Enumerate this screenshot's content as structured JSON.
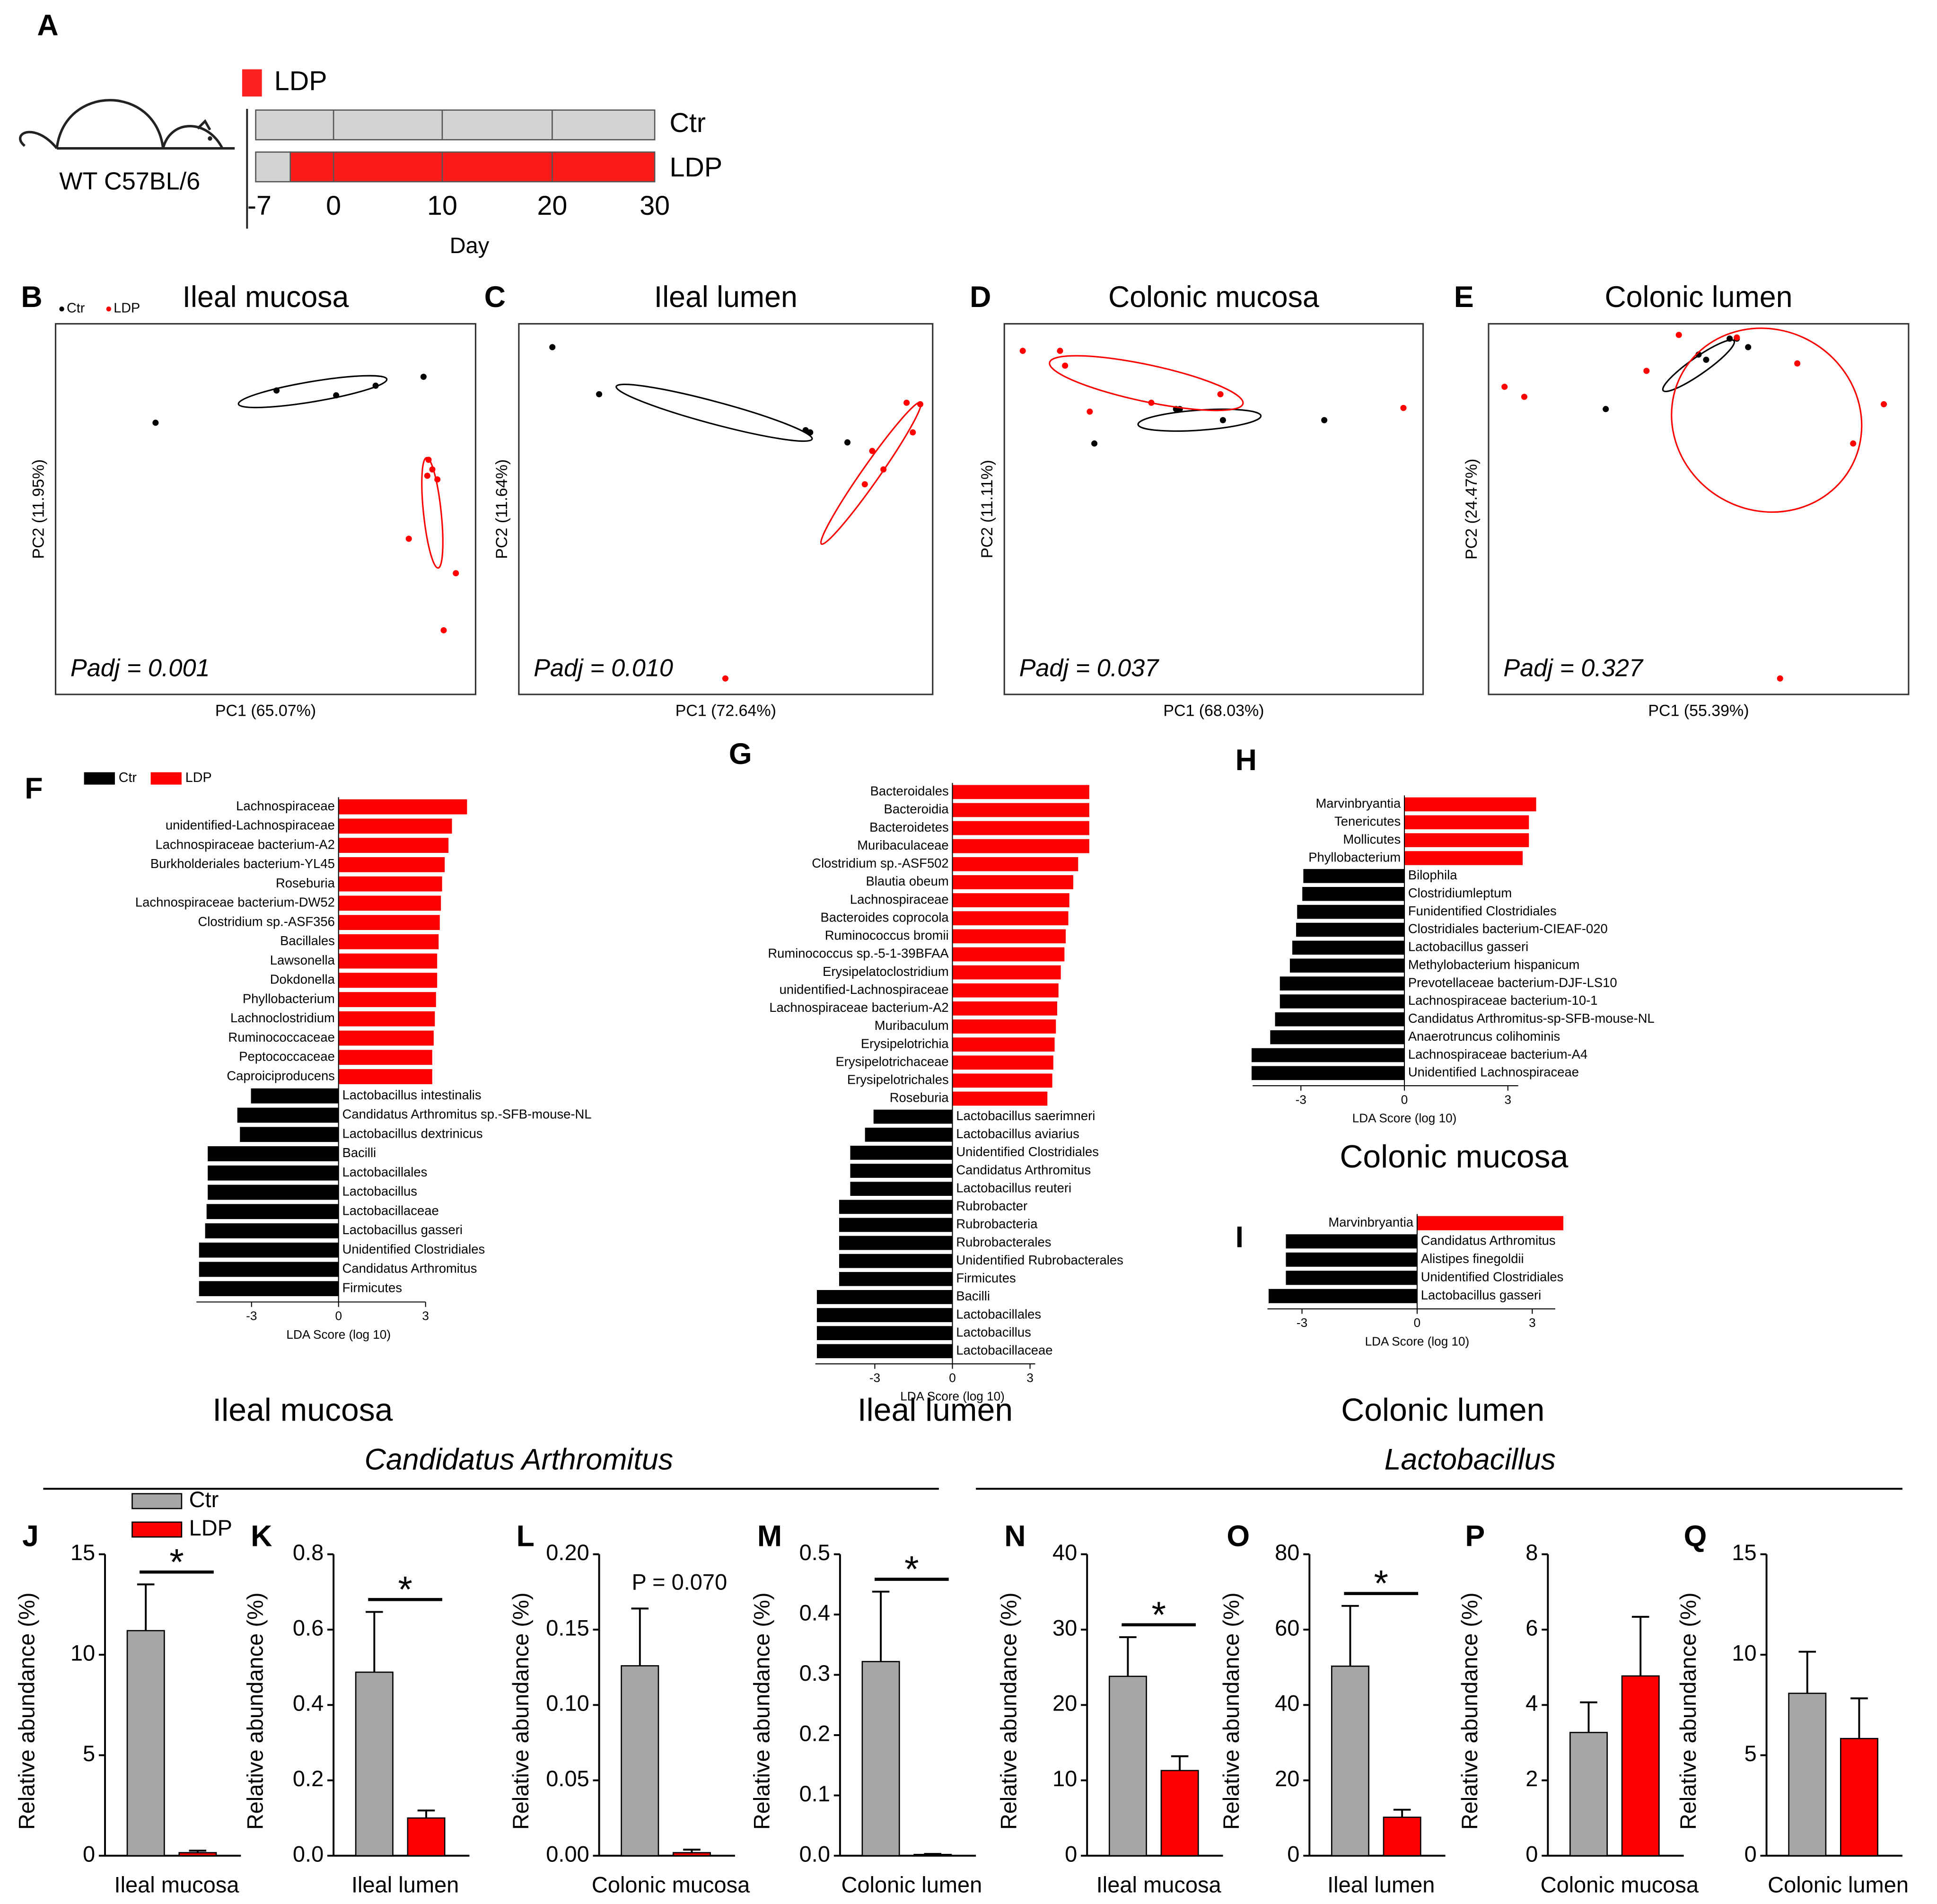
{
  "schematic": {
    "panel": "A",
    "legend": "LDP",
    "mouse": "WT C57BL/6",
    "groups": [
      "Ctr",
      "LDP"
    ],
    "ticks": [
      -7,
      0,
      10,
      20,
      30
    ],
    "xlabel": "Day"
  },
  "headers": [
    "Candidatus Arthromitus",
    "Lactobacillus"
  ],
  "chart_data": [
    {
      "type": "scatter",
      "panel": "B",
      "title": "Ileal mucosa",
      "xlabel": "PC1 (65.07%)",
      "ylabel": "PC2 (11.95%)",
      "annotation": "Padj = 0.001",
      "xlim": [
        0,
        100
      ],
      "ylim": [
        0,
        100
      ],
      "legend": true,
      "series": [
        {
          "name": "Ctr",
          "color": "#000000",
          "x": [
            23.8,
            52.6,
            66.8,
            76.2,
            87.6
          ],
          "y": [
            73.3,
            82,
            80.7,
            83.3,
            85.7
          ],
          "ellipse": {
            "cx": 61.2,
            "cy": 81.7,
            "rx": 17.9,
            "ry": 2.4,
            "angle": -9.5
          }
        },
        {
          "name": "LDP",
          "color": "#ff0000",
          "x": [
            88.8,
            89.7,
            88.5,
            90.9,
            84.1,
            95.3,
            92.4
          ],
          "y": [
            63.3,
            60.7,
            59,
            58,
            42,
            32.7,
            17.3
          ],
          "ellipse": {
            "cx": 89.7,
            "cy": 49,
            "rx": 13.2,
            "ry": 2.1,
            "angle": 84
          }
        }
      ]
    },
    {
      "type": "scatter",
      "panel": "C",
      "title": "Ileal lumen",
      "xlabel": "PC1 (72.64%)",
      "ylabel": "PC2 (11.64%)",
      "annotation": "Padj = 0.010",
      "xlim": [
        0,
        100
      ],
      "ylim": [
        0,
        100
      ],
      "series": [
        {
          "name": "Ctr",
          "color": "#000000",
          "x": [
            8.1,
            19.4,
            69.3,
            70.4,
            79.4
          ],
          "y": [
            93.7,
            81,
            71.3,
            70.7,
            68
          ],
          "ellipse": {
            "cx": 47.2,
            "cy": 76,
            "rx": 24.5,
            "ry": 2.7,
            "angle": 15
          }
        },
        {
          "name": "LDP",
          "color": "#ff0000",
          "x": [
            93.7,
            97,
            95.2,
            85.4,
            88.1,
            83.6,
            49.9
          ],
          "y": [
            78.7,
            78.3,
            70.7,
            65.7,
            60.7,
            56.7,
            4.3
          ],
          "ellipse": {
            "cx": 85.1,
            "cy": 59.7,
            "rx": 20.9,
            "ry": 2.1,
            "angle": -55
          }
        }
      ]
    },
    {
      "type": "scatter",
      "panel": "D",
      "title": "Colonic mucosa",
      "xlabel": "PC1 (68.03%)",
      "ylabel": "PC2 (11.11%)",
      "annotation": "Padj = 0.037",
      "xlim": [
        0,
        100
      ],
      "ylim": [
        0,
        100
      ],
      "series": [
        {
          "name": "Ctr",
          "color": "#000000",
          "x": [
            21.5,
            41,
            41.9,
            52.2,
            76.4
          ],
          "y": [
            67.7,
            77,
            77,
            74,
            74
          ],
          "ellipse": {
            "cx": 46.6,
            "cy": 74,
            "rx": 14.7,
            "ry": 2.4,
            "angle": -4
          }
        },
        {
          "name": "LDP",
          "color": "#ff0000",
          "x": [
            4.4,
            13.3,
            14.5,
            20.4,
            35.1,
            51.6,
            95.3
          ],
          "y": [
            92.7,
            92.7,
            88.7,
            76.3,
            78.7,
            81,
            77.3
          ],
          "ellipse": {
            "cx": 33.9,
            "cy": 84,
            "rx": 23.6,
            "ry": 4.4,
            "angle": 12
          }
        }
      ]
    },
    {
      "type": "scatter",
      "panel": "E",
      "title": "Colonic lumen",
      "xlabel": "PC1 (55.39%)",
      "ylabel": "PC2 (24.47%)",
      "annotation": "Padj = 0.327",
      "xlim": [
        0,
        100
      ],
      "ylim": [
        0,
        100
      ],
      "series": [
        {
          "name": "Ctr",
          "color": "#000000",
          "x": [
            27.9,
            50,
            51.8,
            57.4,
            59.1,
            61.8
          ],
          "y": [
            77,
            91.7,
            90.3,
            96,
            96,
            93.7
          ],
          "ellipse": {
            "cx": 50,
            "cy": 88.7,
            "rx": 10.3,
            "ry": 2,
            "angle": -35
          }
        },
        {
          "name": "LDP",
          "color": "#ff0000",
          "x": [
            3.8,
            8.5,
            37.6,
            45.3,
            73.5,
            86.8,
            94.1,
            69.4,
            59.1
          ],
          "y": [
            83,
            80.3,
            87.3,
            97,
            89.3,
            67.7,
            78.3,
            4.3,
            96.3
          ],
          "ellipse": {
            "cx": 66.2,
            "cy": 74,
            "rx": 23,
            "ry": 21.5,
            "angle": 30
          }
        }
      ]
    },
    {
      "type": "lda",
      "panel": "F",
      "title": "Ileal mucosa",
      "xlabel": "LDA Score (log 10)",
      "xlim": [
        -4.9,
        3
      ],
      "xticks": [
        -3,
        0,
        3
      ],
      "legend": true,
      "series": [
        {
          "name": "Ctr",
          "color": "#000000",
          "categories": [
            "Lactobacillus intestinalis",
            "Candidatus Arthromitus sp.-SFB-mouse-NL",
            "Lactobacillus dextrinicus",
            "Bacilli",
            "Lactobacillales",
            "Lactobacillus",
            "Lactobacillaceae",
            "Lactobacillus gasseri",
            "Unidentified Clostridiales",
            "Candidatus Arthromitus",
            "Firmicutes"
          ],
          "values": [
            -3.02,
            -3.49,
            -3.4,
            -4.51,
            -4.51,
            -4.51,
            -4.55,
            -4.6,
            -4.81,
            -4.81,
            -4.81
          ]
        },
        {
          "name": "LDP",
          "color": "#ff0000",
          "categories": [
            "Lachnospiraceae",
            "unidentified-Lachnospiraceae",
            "Lachnospiraceae bacterium-A2",
            "Burkholderiales bacterium-YL45",
            "Roseburia",
            "Lachnospiraceae bacterium-DW52",
            "Clostridium sp.-ASF356",
            "Bacillales",
            "Lawsonella",
            "Dokdonella",
            "Phyllobacterium",
            "Lachnoclostridium",
            "Ruminococcaceae",
            "Peptococcaceae",
            "Caproiciproducens"
          ],
          "values": [
            4.43,
            3.91,
            3.79,
            3.66,
            3.57,
            3.53,
            3.49,
            3.45,
            3.4,
            3.4,
            3.36,
            3.32,
            3.28,
            3.23,
            3.23
          ]
        }
      ]
    },
    {
      "type": "lda",
      "panel": "G",
      "title": "Ileal lumen",
      "xlabel": "LDA Score (log 10)",
      "xlim": [
        -5.3,
        3.2
      ],
      "xticks": [
        -3,
        0,
        3
      ],
      "series": [
        {
          "name": "Ctr",
          "color": "#000000",
          "categories": [
            "Lactobacillus saerimneri",
            "Lactobacillus aviarius",
            "Unidentified Clostridiales",
            "Candidatus Arthromitus",
            "Lactobacillus reuteri",
            "Rubrobacter",
            "Rubrobacteria",
            "Rubrobacterales",
            "Unidentified Rubrobacterales",
            "Firmicutes",
            "Bacilli",
            "Lactobacillales",
            "Lactobacillus",
            "Lactobacillaceae"
          ],
          "values": [
            -3.05,
            -3.38,
            -3.95,
            -3.95,
            -3.95,
            -4.38,
            -4.38,
            -4.38,
            -4.38,
            -4.38,
            -5.24,
            -5.24,
            -5.24,
            -5.24
          ]
        },
        {
          "name": "LDP",
          "color": "#ff0000",
          "categories": [
            "Bacteroidales",
            "Bacteroidia",
            "Bacteroidetes",
            "Muribaculaceae",
            "Clostridium sp.-ASF502",
            "Blautia obeum",
            "Lachnospiraceae",
            "Bacteroides coprocola",
            "Ruminococcus bromii",
            "Ruminococcus sp.-5-1-39BFAA",
            "Erysipelatoclostridium",
            "unidentified-Lachnospiraceae",
            "Lachnospiraceae bacterium-A2",
            "Muribaculum",
            "Erysipelotrichia",
            "Erysipelotrichaceae",
            "Erysipelotrichales",
            "Roseburia"
          ],
          "values": [
            5.29,
            5.29,
            5.29,
            5.29,
            4.86,
            4.67,
            4.52,
            4.48,
            4.38,
            4.33,
            4.19,
            4.1,
            4.05,
            4,
            3.95,
            3.9,
            3.86,
            3.67
          ]
        }
      ]
    },
    {
      "type": "lda",
      "panel": "H",
      "title": "Colonic mucosa",
      "xlabel": "LDA Score (log 10)",
      "xlim": [
        -4.4,
        3.3
      ],
      "xticks": [
        -3,
        0,
        3
      ],
      "series": [
        {
          "name": "Ctr",
          "color": "#000000",
          "categories": [
            "Bilophila",
            "Clostridiumleptum",
            "Funidentified Clostridiales",
            "Clostridiales bacterium-CIEAF-020",
            "Lactobacillus gasseri",
            "Methylobacterium hispanicum",
            "Prevotellaceae bacterium-DJF-LS10",
            "Lachnospiraceae bacterium-10-1",
            "Candidatus Arthromitus-sp-SFB-mouse-NL",
            "Anaerotruncus colihominis",
            "Lachnospiraceae bacterium-A4",
            "Unidentified Lachnospiraceae"
          ],
          "values": [
            -2.93,
            -2.96,
            -3.11,
            -3.14,
            -3.25,
            -3.32,
            -3.61,
            -3.61,
            -3.75,
            -3.89,
            -4.43,
            -4.43
          ]
        },
        {
          "name": "LDP",
          "color": "#ff0000",
          "categories": [
            "Marvinbryantia",
            "Tenericutes",
            "Mollicutes",
            "Phyllobacterium"
          ],
          "values": [
            3.82,
            3.61,
            3.61,
            3.43
          ]
        }
      ]
    },
    {
      "type": "lda",
      "panel": "I",
      "title": "Colonic lumen",
      "xlabel": "LDA Score (log 10)",
      "xlim": [
        -3.9,
        3.6
      ],
      "xticks": [
        -3,
        0,
        3
      ],
      "series": [
        {
          "name": "Ctr",
          "color": "#000000",
          "categories": [
            "Candidatus Arthromitus",
            "Alistipes finegoldii",
            "Unidentified Clostridiales",
            "Lactobacillus gasseri"
          ],
          "values": [
            -3.42,
            -3.42,
            -3.42,
            -3.87
          ]
        },
        {
          "name": "LDP",
          "color": "#ff0000",
          "categories": [
            "Marvinbryantia"
          ],
          "values": [
            3.81
          ]
        }
      ]
    },
    {
      "type": "bar",
      "panel": "J",
      "xlabel": "Ileal mucosa",
      "ylabel": "Relative abundance (%)",
      "categories": [
        "Ctr",
        "LDP"
      ],
      "colors": [
        "#a6a6a6",
        "#ff0000"
      ],
      "values": [
        11.2,
        0.15
      ],
      "errors": [
        2.3,
        0.1
      ],
      "ylim": [
        0,
        15
      ],
      "yticks": [
        0,
        5,
        10,
        15
      ],
      "annotation": "*",
      "bracket": true,
      "legend": true
    },
    {
      "type": "bar",
      "panel": "K",
      "xlabel": "Ileal lumen",
      "ylabel": "Relative abundance (%)",
      "categories": [
        "Ctr",
        "LDP"
      ],
      "colors": [
        "#a6a6a6",
        "#ff0000"
      ],
      "values": [
        0.487,
        0.1
      ],
      "errors": [
        0.16,
        0.02
      ],
      "ylim": [
        0,
        0.8
      ],
      "yticks": [
        {
          "value": 0,
          "label": "0.0"
        },
        0.2,
        0.4,
        0.6,
        0.8
      ],
      "annotation": "*",
      "bracket": true
    },
    {
      "type": "bar",
      "panel": "L",
      "xlabel": "Colonic mucosa",
      "ylabel": "Relative abundance (%)",
      "categories": [
        "Ctr",
        "LDP"
      ],
      "colors": [
        "#a6a6a6",
        "#ff0000"
      ],
      "values": [
        0.126,
        0.002
      ],
      "errors": [
        0.038,
        0.002
      ],
      "ylim": [
        0,
        0.2
      ],
      "yticks": [
        {
          "value": 0,
          "label": "0.00"
        },
        {
          "value": 0.05,
          "label": "0.05"
        },
        {
          "value": 0.1,
          "label": "0.10"
        },
        {
          "value": 0.15,
          "label": "0.15"
        },
        {
          "value": 0.2,
          "label": "0.20"
        }
      ],
      "annotation": "P = 0.070",
      "bracket": false
    },
    {
      "type": "bar",
      "panel": "M",
      "xlabel": "Colonic lumen",
      "ylabel": "Relative abundance (%)",
      "categories": [
        "Ctr",
        "LDP"
      ],
      "colors": [
        "#a6a6a6",
        "#ff0000"
      ],
      "values": [
        0.322,
        0.002
      ],
      "errors": [
        0.116,
        0.001
      ],
      "ylim": [
        0,
        0.5
      ],
      "yticks": [
        {
          "value": 0,
          "label": "0.0"
        },
        0.1,
        0.2,
        0.3,
        0.4,
        0.5
      ],
      "annotation": "*",
      "bracket": true
    },
    {
      "type": "bar",
      "panel": "N",
      "xlabel": "Ileal mucosa",
      "ylabel": "Relative abundance (%)",
      "categories": [
        "Ctr",
        "LDP"
      ],
      "colors": [
        "#a6a6a6",
        "#ff0000"
      ],
      "values": [
        23.8,
        11.3
      ],
      "errors": [
        5.2,
        1.9
      ],
      "ylim": [
        0,
        40
      ],
      "yticks": [
        0,
        10,
        20,
        30,
        40
      ],
      "annotation": "*",
      "bracket": true
    },
    {
      "type": "bar",
      "panel": "O",
      "xlabel": "Ileal lumen",
      "ylabel": "Relative abundance (%)",
      "categories": [
        "Ctr",
        "LDP"
      ],
      "colors": [
        "#a6a6a6",
        "#ff0000"
      ],
      "values": [
        50.3,
        10.2
      ],
      "errors": [
        16,
        2
      ],
      "ylim": [
        0,
        80
      ],
      "yticks": [
        0,
        20,
        40,
        60,
        80
      ],
      "annotation": "*",
      "bracket": true
    },
    {
      "type": "bar",
      "panel": "P",
      "xlabel": "Colonic mucosa",
      "ylabel": "Relative abundance (%)",
      "categories": [
        "Ctr",
        "LDP"
      ],
      "colors": [
        "#a6a6a6",
        "#ff0000"
      ],
      "values": [
        3.27,
        4.77
      ],
      "errors": [
        0.8,
        1.57
      ],
      "ylim": [
        0,
        8
      ],
      "yticks": [
        0,
        2,
        4,
        6,
        8
      ]
    },
    {
      "type": "bar",
      "panel": "Q",
      "xlabel": "Colonic lumen",
      "ylabel": "Relative abundance (%)",
      "categories": [
        "Ctr",
        "LDP"
      ],
      "colors": [
        "#a6a6a6",
        "#ff0000"
      ],
      "values": [
        8.08,
        5.83
      ],
      "errors": [
        2.07,
        2
      ],
      "ylim": [
        0,
        15
      ],
      "yticks": [
        0,
        5,
        10,
        15
      ]
    }
  ]
}
